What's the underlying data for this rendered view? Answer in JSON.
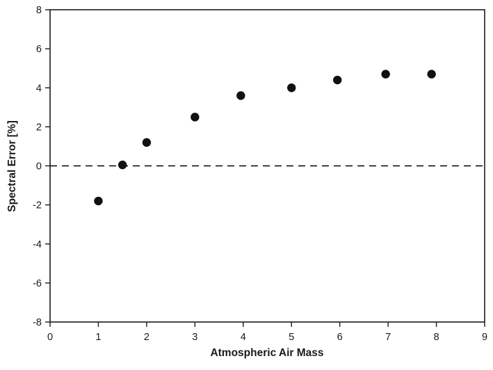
{
  "chart_data": {
    "type": "scatter",
    "title": "",
    "xlabel": "Atmospheric Air Mass",
    "ylabel": "Spectral Error [%]",
    "xlim": [
      0,
      9
    ],
    "ylim": [
      -8,
      8
    ],
    "x_ticks": [
      0,
      1,
      2,
      3,
      4,
      5,
      6,
      7,
      8,
      9
    ],
    "y_ticks": [
      -8,
      -6,
      -4,
      -2,
      0,
      2,
      4,
      6,
      8
    ],
    "grid": false,
    "legend_position": "none",
    "points": [
      {
        "x": 1.0,
        "y": -1.8
      },
      {
        "x": 1.5,
        "y": 0.05
      },
      {
        "x": 2.0,
        "y": 1.2
      },
      {
        "x": 3.0,
        "y": 2.5
      },
      {
        "x": 3.95,
        "y": 3.6
      },
      {
        "x": 5.0,
        "y": 4.0
      },
      {
        "x": 5.95,
        "y": 4.4
      },
      {
        "x": 6.95,
        "y": 4.7
      },
      {
        "x": 7.9,
        "y": 4.7
      }
    ],
    "reference_line": {
      "y": 0,
      "style": "dashed",
      "color": "#000000"
    },
    "marker": {
      "shape": "circle",
      "color": "#111111",
      "radius": 6.2
    },
    "colors": {
      "plot_border": "#1a1a1a",
      "background": "#ffffff",
      "marker": "#111111"
    }
  }
}
